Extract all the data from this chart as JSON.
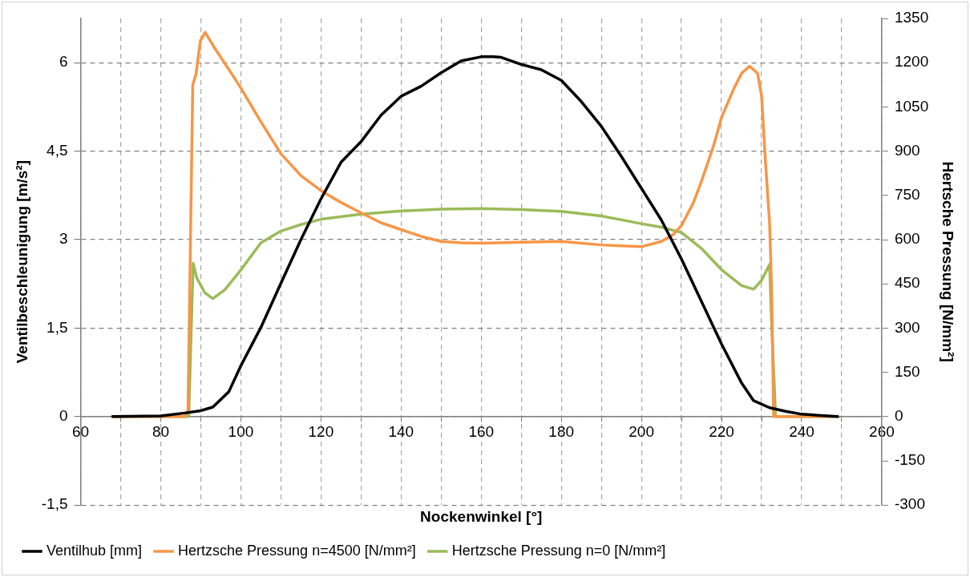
{
  "chart_data": {
    "type": "line",
    "xlabel": "Nockenwinkel [°]",
    "ylabel": "Ventilbeschleunigung [m/s²]",
    "y2label": "Hertsche Pressung [N/mm²]",
    "xlim": [
      60,
      260
    ],
    "xticks": [
      60,
      {
        "value": 70,
        "label": null
      },
      80,
      {
        "value": 90,
        "label": null
      },
      100,
      {
        "value": 110,
        "label": null
      },
      120,
      {
        "value": 130,
        "label": null
      },
      140,
      {
        "value": 150,
        "label": null
      },
      160,
      {
        "value": 170,
        "label": null
      },
      180,
      {
        "value": 190,
        "label": null
      },
      200,
      {
        "value": 210,
        "label": null
      },
      220,
      {
        "value": 230,
        "label": null
      },
      240,
      {
        "value": 250,
        "label": null
      },
      260
    ],
    "ylim": [
      -1.5,
      6.75
    ],
    "yticks": [
      {
        "value": -1.5,
        "label": "-1,5"
      },
      0,
      {
        "value": 1.5,
        "label": "1,5"
      },
      3,
      {
        "value": 4.5,
        "label": "4,5"
      },
      6
    ],
    "y2lim": [
      -300,
      1350
    ],
    "y2ticks": [
      -300,
      -150,
      0,
      150,
      300,
      450,
      600,
      750,
      900,
      1050,
      1200,
      1350
    ],
    "grid": true,
    "legend": "bottom",
    "marker": "none",
    "line_style": "solid",
    "series": [
      {
        "name": "Ventilhub [mm]",
        "color": "#000000",
        "x": [
          68,
          80,
          86,
          90,
          93,
          97,
          100,
          105,
          110,
          115,
          120,
          125,
          130,
          135,
          140,
          145,
          150,
          155,
          160,
          163,
          165,
          170,
          175,
          180,
          185,
          190,
          195,
          200,
          205,
          210,
          215,
          220,
          225,
          228,
          232,
          236,
          240,
          249
        ],
        "values": [
          0,
          0.01,
          0.06,
          0.1,
          0.16,
          0.42,
          0.86,
          1.51,
          2.26,
          3.0,
          3.69,
          4.31,
          4.66,
          5.11,
          5.43,
          5.6,
          5.83,
          6.03,
          6.1,
          6.1,
          6.09,
          5.97,
          5.88,
          5.7,
          5.34,
          4.92,
          4.41,
          3.87,
          3.33,
          2.67,
          1.95,
          1.23,
          0.57,
          0.27,
          0.15,
          0.09,
          0.04,
          0
        ]
      },
      {
        "name": "Hertzsche Pressung n=4500 [N/mm²]",
        "color": "#f79646",
        "axis": "y2",
        "x": [
          68,
          86,
          86.8,
          88,
          88.8,
          89.9,
          91.1,
          93.4,
          97.3,
          100,
          105,
          110,
          115,
          120,
          125,
          130,
          135,
          140,
          145,
          150,
          155,
          160,
          170,
          180,
          190,
          200,
          205,
          208,
          210,
          213,
          215,
          218,
          220,
          223,
          225,
          227,
          229,
          230,
          231,
          232,
          232.5,
          233,
          240,
          248
        ],
        "values": [
          0,
          0,
          20,
          1126,
          1160,
          1274,
          1303,
          1251,
          1171,
          1114,
          1000,
          891,
          817,
          766,
          726,
          691,
          657,
          634,
          611,
          594,
          589,
          588,
          591,
          594,
          582,
          576,
          594,
          618,
          648,
          726,
          798,
          918,
          1014,
          1110,
          1164,
          1188,
          1164,
          1086,
          858,
          654,
          438,
          0,
          0,
          0
        ]
      },
      {
        "name": "Hertzsche Pressung n=0 [N/mm²]",
        "color": "#9bbb59",
        "axis": "y2",
        "x": [
          68,
          87,
          88.1,
          89,
          91,
          93,
          96,
          100,
          105,
          110,
          115,
          120,
          130,
          140,
          150,
          160,
          170,
          180,
          190,
          200,
          205,
          210,
          215,
          220,
          225,
          228,
          230,
          232,
          232.5,
          233.5,
          249
        ],
        "values": [
          0,
          0,
          520,
          470,
          420,
          400,
          430,
          497,
          589,
          629,
          651,
          669,
          686,
          697,
          703,
          705,
          702,
          696,
          680,
          654,
          642,
          624,
          570,
          498,
          444,
          432,
          462,
          516,
          318,
          0,
          0
        ]
      }
    ]
  }
}
